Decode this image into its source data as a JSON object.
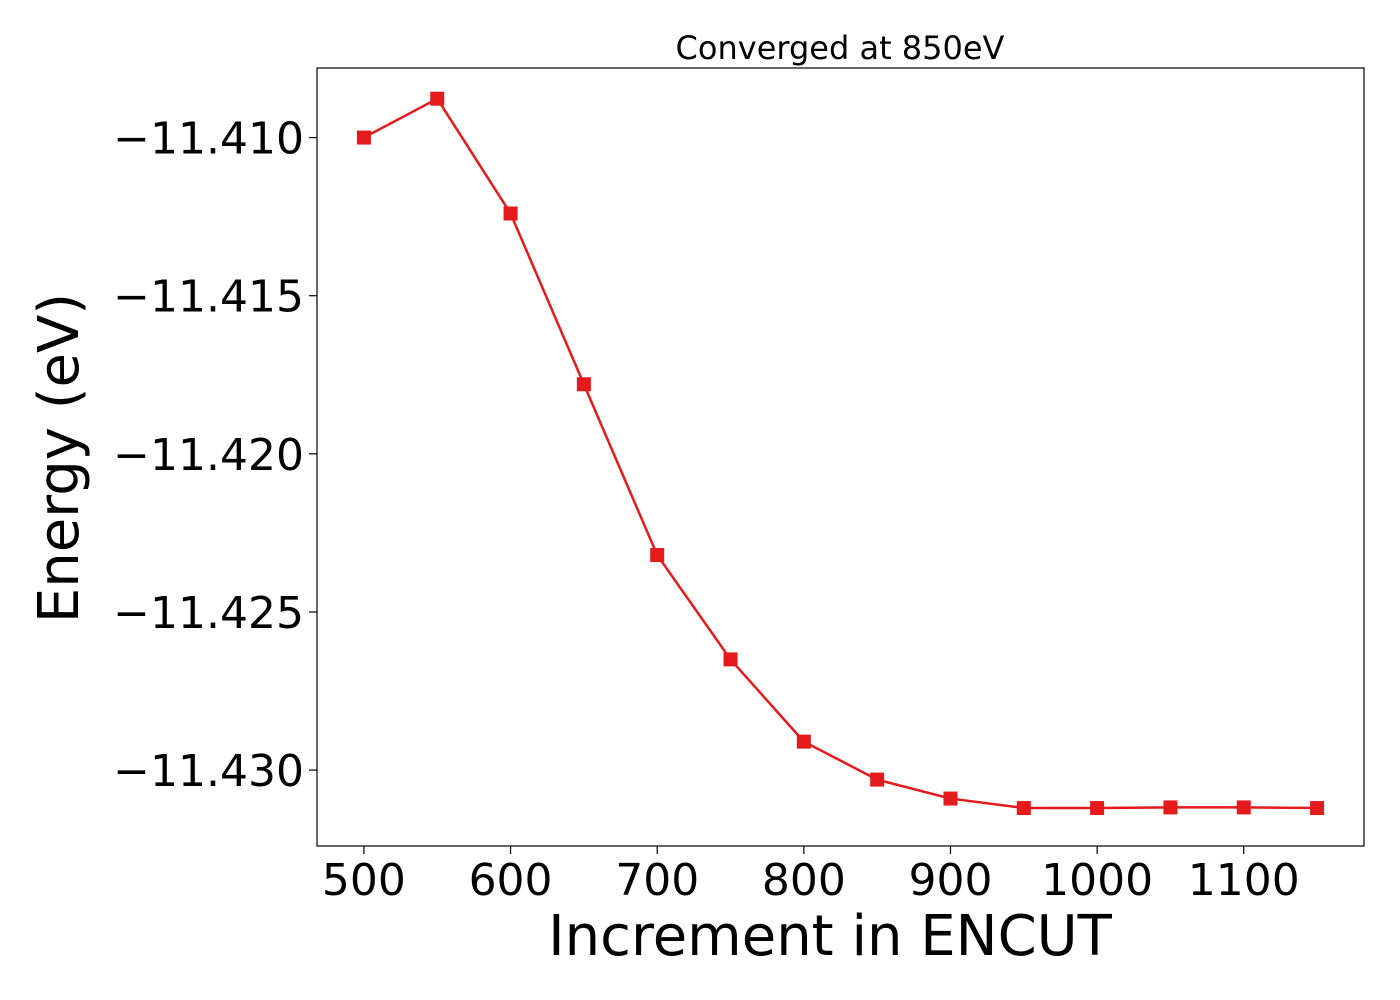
{
  "chart_data": {
    "type": "line",
    "title": "Converged at 850eV",
    "xlabel": "Increment in ENCUT",
    "ylabel": "Energy (eV)",
    "xlim": [
      468,
      1182
    ],
    "ylim": [
      -11.4324,
      -11.4078
    ],
    "xticks": [
      500,
      600,
      700,
      800,
      900,
      1000,
      1100
    ],
    "yticks": [
      -11.43,
      -11.425,
      -11.42,
      -11.415,
      -11.41
    ],
    "ytick_labels": [
      "−11.430",
      "−11.425",
      "−11.420",
      "−11.415",
      "−11.410"
    ],
    "grid": false,
    "series": [
      {
        "color": "#e41a1c",
        "marker": "square",
        "x": [
          500,
          550,
          600,
          650,
          700,
          750,
          800,
          850,
          900,
          950,
          1000,
          1050,
          1100,
          1150
        ],
        "y": [
          -11.41,
          -11.40877,
          -11.4124,
          -11.4178,
          -11.4232,
          -11.4265,
          -11.4291,
          -11.4303,
          -11.4309,
          -11.4312,
          -11.4312,
          -11.43118,
          -11.43118,
          -11.4312
        ]
      }
    ]
  }
}
